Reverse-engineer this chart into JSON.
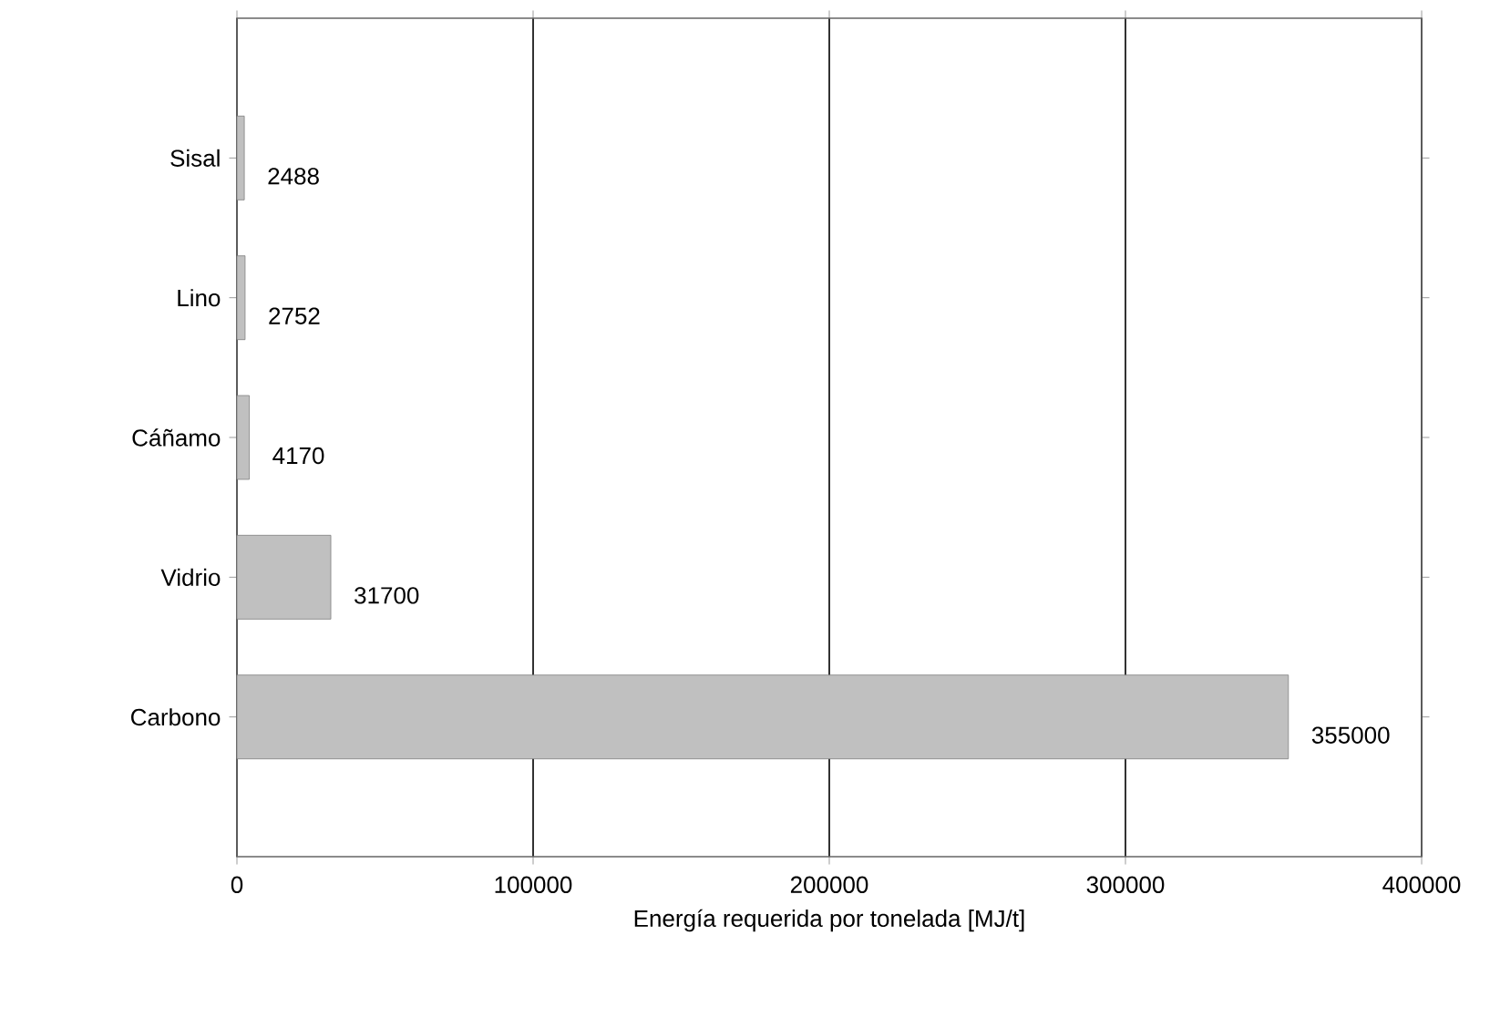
{
  "chart_data": {
    "type": "bar",
    "orientation": "horizontal",
    "xlabel": "Energía requerida por tonelada [MJ/t]",
    "categories": [
      "Sisal",
      "Lino",
      "Cáñamo",
      "Vidrio",
      "Carbono"
    ],
    "values": [
      2488,
      2752,
      4170,
      31700,
      355000
    ],
    "color": "#c0c0c0",
    "data_labels": true,
    "grid": "x",
    "xlim": [
      0,
      400000
    ],
    "xticks": [
      0,
      100000,
      200000,
      300000,
      400000
    ]
  }
}
